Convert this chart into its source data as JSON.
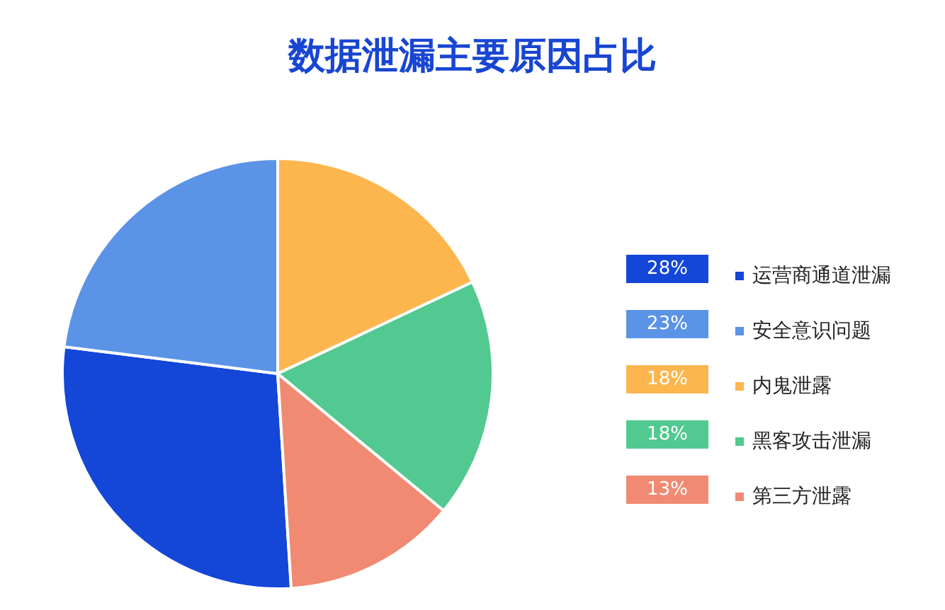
{
  "chart_data": {
    "type": "pie",
    "title": "数据泄漏主要原因占比",
    "categories": [
      "运营商通道泄漏",
      "安全意识问题",
      "内鬼泄露",
      "黑客攻击泄漏",
      "第三方泄露"
    ],
    "values": [
      28,
      23,
      18,
      18,
      13
    ],
    "value_labels": [
      "28%",
      "23%",
      "18%",
      "18%",
      "13%"
    ],
    "colors": [
      "#1446d8",
      "#5b93e6",
      "#fdb64e",
      "#52c990",
      "#f08a72"
    ],
    "legend": "right"
  }
}
